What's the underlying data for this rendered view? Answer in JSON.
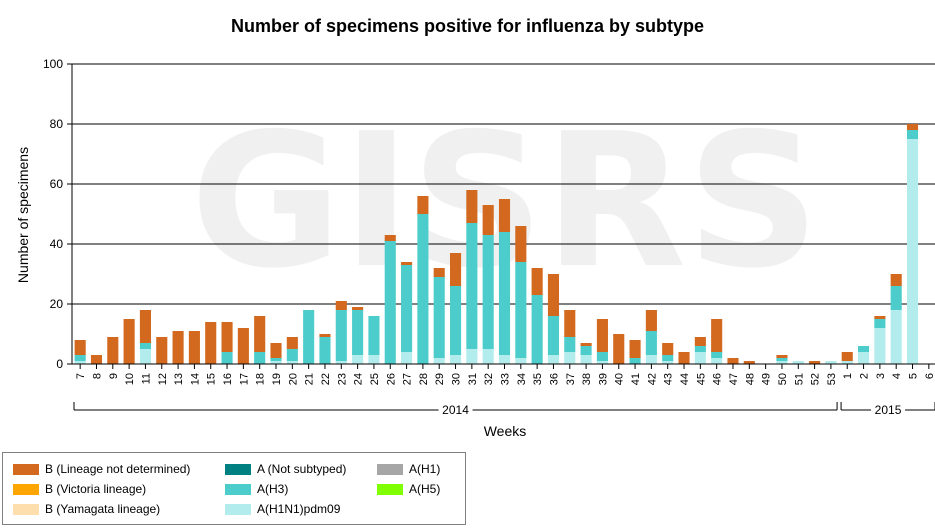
{
  "chart_data": {
    "type": "bar",
    "stacked": true,
    "title": "Number of specimens positive for influenza by subtype",
    "xlabel": "Weeks",
    "ylabel": "Number of specimens",
    "ylim": [
      0,
      100
    ],
    "yticks": [
      0,
      20,
      40,
      60,
      80,
      100
    ],
    "watermark": "GISRS",
    "year_groups": [
      {
        "label": "2014",
        "from": 0,
        "to": 46
      },
      {
        "label": "2015",
        "from": 47,
        "to": 52
      }
    ],
    "categories": [
      "7",
      "8",
      "9",
      "10",
      "11",
      "12",
      "13",
      "14",
      "15",
      "16",
      "17",
      "18",
      "19",
      "20",
      "21",
      "22",
      "23",
      "24",
      "25",
      "26",
      "27",
      "28",
      "29",
      "30",
      "31",
      "32",
      "33",
      "34",
      "35",
      "36",
      "37",
      "38",
      "39",
      "40",
      "41",
      "42",
      "43",
      "44",
      "45",
      "46",
      "47",
      "48",
      "49",
      "50",
      "51",
      "52",
      "53",
      "1",
      "2",
      "3",
      "4",
      "5",
      "6"
    ],
    "series": [
      {
        "name": "A(H1N1)pdm09",
        "color": "#b3ecec",
        "values": [
          1,
          0,
          0,
          0,
          5,
          0,
          0,
          0,
          0,
          0,
          0,
          0,
          1,
          1,
          0,
          0,
          1,
          3,
          3,
          0,
          4,
          0,
          2,
          3,
          5,
          5,
          3,
          2,
          0,
          3,
          4,
          3,
          1,
          0,
          0,
          3,
          1,
          0,
          4,
          2,
          0,
          0,
          0,
          1,
          1,
          0,
          1,
          1,
          4,
          12,
          18,
          75,
          0
        ]
      },
      {
        "name": "A(H3)",
        "color": "#4dcccc",
        "values": [
          2,
          0,
          0,
          0,
          2,
          0,
          0,
          0,
          0,
          4,
          0,
          4,
          1,
          4,
          18,
          9,
          17,
          15,
          13,
          41,
          29,
          50,
          27,
          23,
          42,
          38,
          41,
          32,
          23,
          13,
          5,
          3,
          3,
          0,
          2,
          8,
          2,
          0,
          2,
          2,
          0,
          0,
          0,
          1,
          0,
          0,
          0,
          0,
          2,
          3,
          8,
          3,
          0
        ]
      },
      {
        "name": "B (Lineage not determined)",
        "color": "#d2691e",
        "values": [
          5,
          3,
          9,
          15,
          11,
          9,
          11,
          11,
          14,
          10,
          12,
          12,
          5,
          4,
          0,
          1,
          3,
          1,
          0,
          2,
          1,
          6,
          3,
          11,
          11,
          10,
          11,
          12,
          9,
          14,
          9,
          1,
          11,
          10,
          6,
          7,
          4,
          4,
          3,
          11,
          2,
          1,
          0,
          1,
          0,
          1,
          0,
          3,
          0,
          1,
          4,
          2,
          0
        ]
      }
    ],
    "legend": [
      {
        "label": "B (Lineage not determined)",
        "color": "#d2691e"
      },
      {
        "label": "A (Not subtyped)",
        "color": "#008080"
      },
      {
        "label": "A(H1)",
        "color": "#a6a6a6"
      },
      {
        "label": "B (Victoria lineage)",
        "color": "#ffa500"
      },
      {
        "label": "A(H3)",
        "color": "#4dcccc"
      },
      {
        "label": "A(H5)",
        "color": "#7fff00"
      },
      {
        "label": "B (Yamagata lineage)",
        "color": "#ffdead"
      },
      {
        "label": "A(H1N1)pdm09",
        "color": "#b3ecec"
      }
    ]
  }
}
